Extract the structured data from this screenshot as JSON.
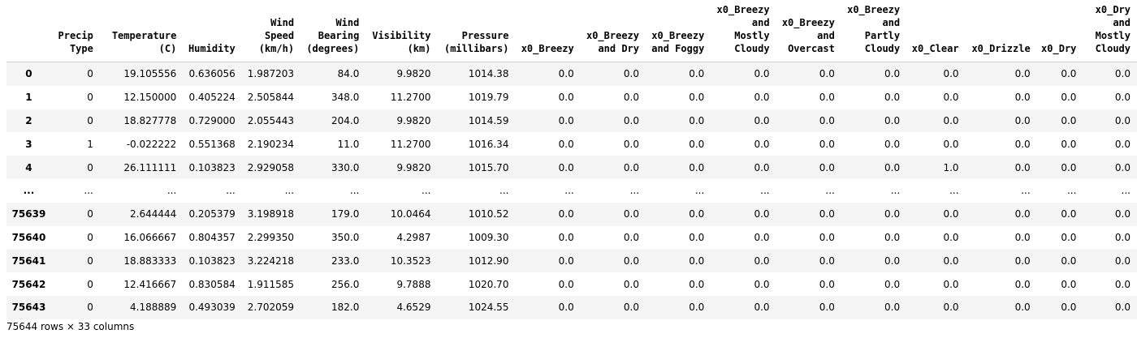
{
  "dataframe": {
    "columns": [
      "Precip\nType",
      "Temperature\n(C)",
      "Humidity",
      "Wind\nSpeed\n(km/h)",
      "Wind\nBearing\n(degrees)",
      "Visibility\n(km)",
      "Pressure\n(millibars)",
      "x0_Breezy",
      "x0_Breezy\nand Dry",
      "x0_Breezy\nand Foggy",
      "x0_Breezy\nand\nMostly\nCloudy",
      "x0_Breezy\nand\nOvercast",
      "x0_Breezy\nand\nPartly\nCloudy",
      "x0_Clear",
      "x0_Drizzle",
      "x0_Dry",
      "x0_Dry\nand\nMostly\nCloudy"
    ],
    "rows": [
      {
        "index": "0",
        "cells": [
          "0",
          "19.105556",
          "0.636056",
          "1.987203",
          "84.0",
          "9.9820",
          "1014.38",
          "0.0",
          "0.0",
          "0.0",
          "0.0",
          "0.0",
          "0.0",
          "0.0",
          "0.0",
          "0.0",
          "0.0"
        ]
      },
      {
        "index": "1",
        "cells": [
          "0",
          "12.150000",
          "0.405224",
          "2.505844",
          "348.0",
          "11.2700",
          "1019.79",
          "0.0",
          "0.0",
          "0.0",
          "0.0",
          "0.0",
          "0.0",
          "0.0",
          "0.0",
          "0.0",
          "0.0"
        ]
      },
      {
        "index": "2",
        "cells": [
          "0",
          "18.827778",
          "0.729000",
          "2.055443",
          "204.0",
          "9.9820",
          "1014.59",
          "0.0",
          "0.0",
          "0.0",
          "0.0",
          "0.0",
          "0.0",
          "0.0",
          "0.0",
          "0.0",
          "0.0"
        ]
      },
      {
        "index": "3",
        "cells": [
          "1",
          "-0.022222",
          "0.551368",
          "2.190234",
          "11.0",
          "11.2700",
          "1016.34",
          "0.0",
          "0.0",
          "0.0",
          "0.0",
          "0.0",
          "0.0",
          "0.0",
          "0.0",
          "0.0",
          "0.0"
        ]
      },
      {
        "index": "4",
        "cells": [
          "0",
          "26.111111",
          "0.103823",
          "2.929058",
          "330.0",
          "9.9820",
          "1015.70",
          "0.0",
          "0.0",
          "0.0",
          "0.0",
          "0.0",
          "0.0",
          "1.0",
          "0.0",
          "0.0",
          "0.0"
        ]
      },
      {
        "index": "...",
        "cells": [
          "...",
          "...",
          "...",
          "...",
          "...",
          "...",
          "...",
          "...",
          "...",
          "...",
          "...",
          "...",
          "...",
          "...",
          "...",
          "...",
          "..."
        ]
      },
      {
        "index": "75639",
        "cells": [
          "0",
          "2.644444",
          "0.205379",
          "3.198918",
          "179.0",
          "10.0464",
          "1010.52",
          "0.0",
          "0.0",
          "0.0",
          "0.0",
          "0.0",
          "0.0",
          "0.0",
          "0.0",
          "0.0",
          "0.0"
        ]
      },
      {
        "index": "75640",
        "cells": [
          "0",
          "16.066667",
          "0.804357",
          "2.299350",
          "350.0",
          "4.2987",
          "1009.30",
          "0.0",
          "0.0",
          "0.0",
          "0.0",
          "0.0",
          "0.0",
          "0.0",
          "0.0",
          "0.0",
          "0.0"
        ]
      },
      {
        "index": "75641",
        "cells": [
          "0",
          "18.883333",
          "0.103823",
          "3.224218",
          "233.0",
          "10.3523",
          "1012.90",
          "0.0",
          "0.0",
          "0.0",
          "0.0",
          "0.0",
          "0.0",
          "0.0",
          "0.0",
          "0.0",
          "0.0"
        ]
      },
      {
        "index": "75642",
        "cells": [
          "0",
          "12.416667",
          "0.830584",
          "1.911585",
          "256.0",
          "9.7888",
          "1020.70",
          "0.0",
          "0.0",
          "0.0",
          "0.0",
          "0.0",
          "0.0",
          "0.0",
          "0.0",
          "0.0",
          "0.0"
        ]
      },
      {
        "index": "75643",
        "cells": [
          "0",
          "4.188889",
          "0.493039",
          "2.702059",
          "182.0",
          "4.6529",
          "1024.55",
          "0.0",
          "0.0",
          "0.0",
          "0.0",
          "0.0",
          "0.0",
          "0.0",
          "0.0",
          "0.0",
          "0.0"
        ]
      }
    ],
    "shape_note": "75644 rows × 33 columns"
  }
}
